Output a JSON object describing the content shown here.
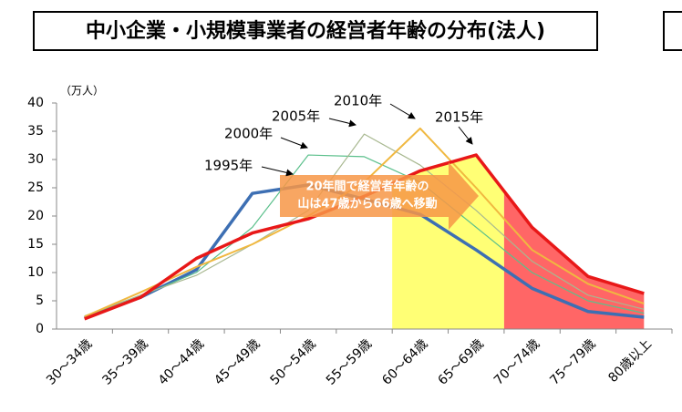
{
  "chart_data": {
    "type": "line",
    "title": "中小企業・小規模事業者の経営者年齢の分布(法人)",
    "unit": "（万人）",
    "categories": [
      "30～34歳",
      "35～39歳",
      "40～44歳",
      "45～49歳",
      "50～54歳",
      "55～59歳",
      "60～64歳",
      "65～69歳",
      "70～74歳",
      "75～79歳",
      "80歳以上"
    ],
    "series": [
      {
        "name": "1995年",
        "color": "#3d6fb3",
        "line_width": 3.5,
        "values": [
          2,
          5.6,
          10.5,
          24,
          25.5,
          23,
          20.3,
          14,
          7.2,
          3.1,
          2.1
        ]
      },
      {
        "name": "2000年",
        "color": "#5cc08c",
        "line_width": 1.2,
        "values": [
          2.3,
          5.8,
          10,
          18,
          30.8,
          30.5,
          26,
          18,
          10,
          5,
          2.8
        ]
      },
      {
        "name": "2005年",
        "color": "#a8b890",
        "line_width": 1.2,
        "values": [
          2.3,
          6,
          9.5,
          15,
          21,
          34.5,
          29,
          21,
          12,
          6,
          3.5
        ]
      },
      {
        "name": "2010年",
        "color": "#f0b840",
        "line_width": 2,
        "values": [
          2.2,
          6.5,
          11,
          15,
          20,
          26,
          35.5,
          25,
          14,
          8,
          4.5
        ]
      },
      {
        "name": "2015年",
        "color": "#e81818",
        "line_width": 3.5,
        "values": [
          1.8,
          5.6,
          12.5,
          17,
          19.5,
          23.5,
          28,
          30.8,
          18,
          9.3,
          6.3
        ]
      }
    ],
    "callout": [
      "20年間で経営者年齢の",
      "山は47歳から66歳へ移動"
    ],
    "ylim": [
      0,
      40
    ],
    "yticks": [
      0,
      5,
      10,
      15,
      20,
      25,
      30,
      35,
      40
    ]
  }
}
